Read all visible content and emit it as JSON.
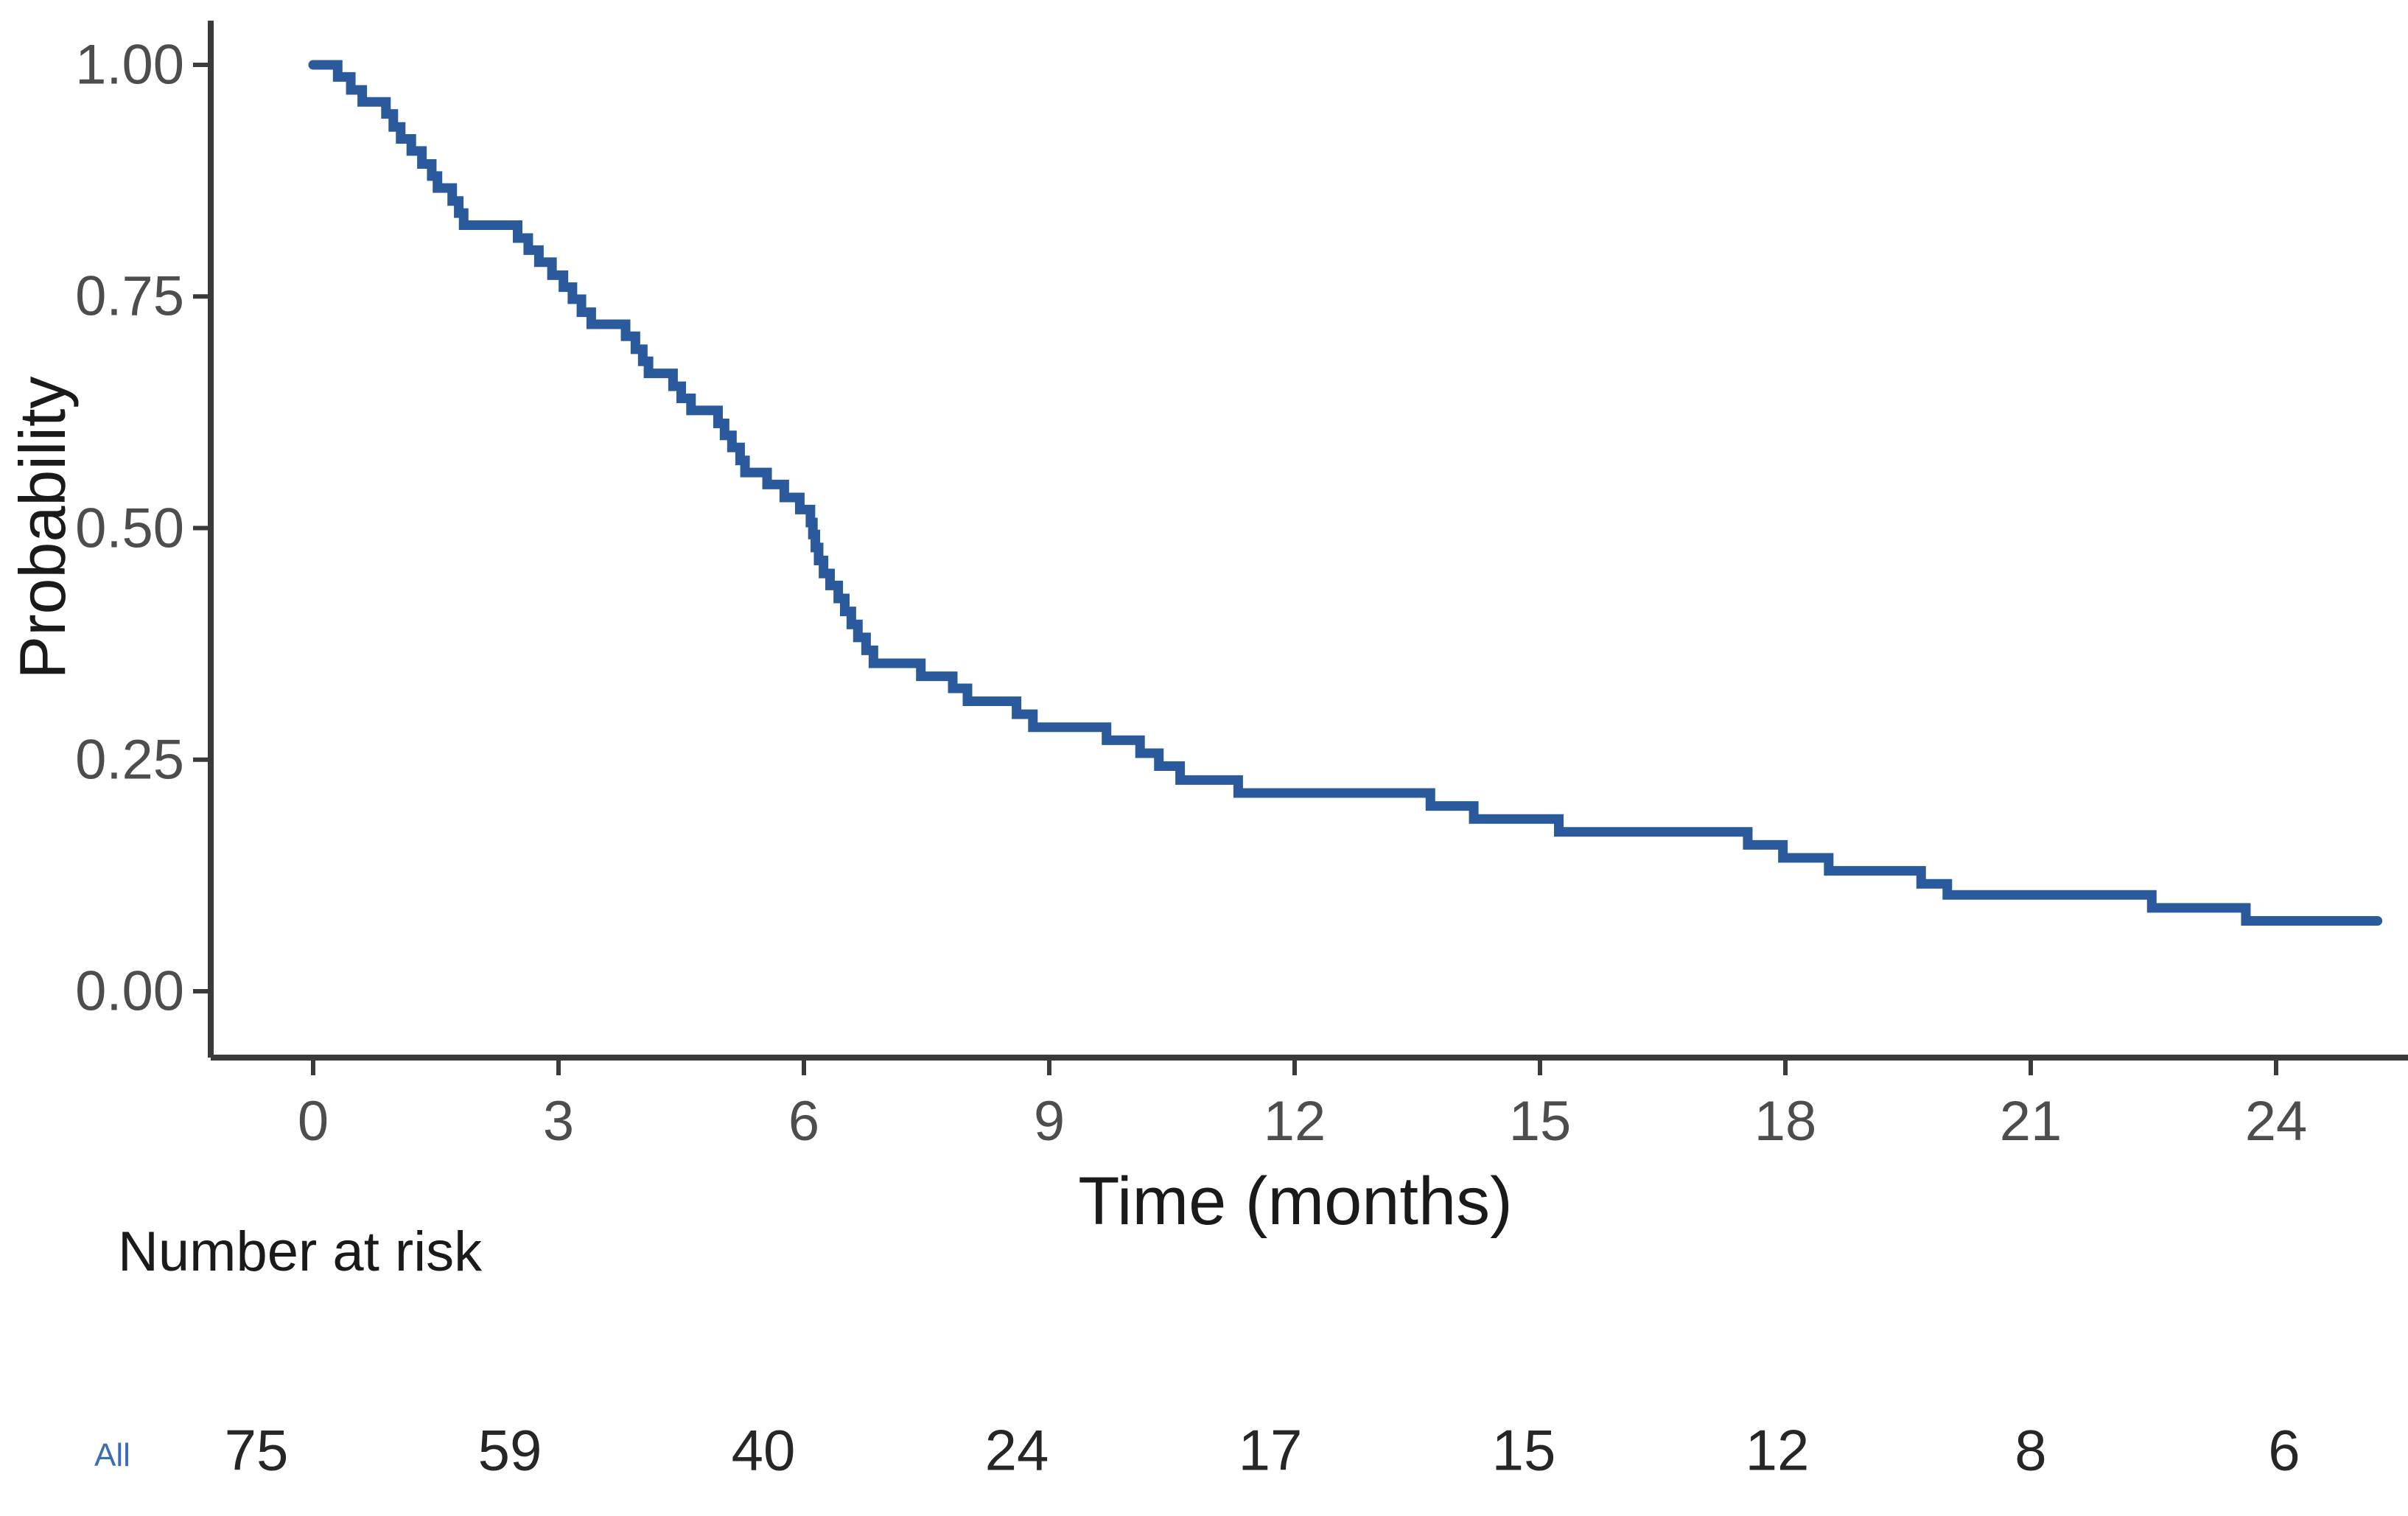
{
  "chart": {
    "y_title": "Probability",
    "x_title": "Time (months)"
  },
  "y_axis": {
    "tick_labels": [
      "1.00",
      "0.75",
      "0.50",
      "0.25",
      "0.00"
    ]
  },
  "x_axis": {
    "tick_labels": [
      "0",
      "3",
      "6",
      "9",
      "12",
      "15",
      "18",
      "21",
      "24"
    ]
  },
  "risk_table": {
    "title": "Number at risk",
    "groups": [
      {
        "label": "All",
        "label_color": "#3b6cb5",
        "counts": [
          "75",
          "59",
          "40",
          "24",
          "17",
          "15",
          "12",
          "8",
          "6"
        ]
      }
    ]
  },
  "chart_data": {
    "type": "line",
    "subtype": "kaplan-meier-step-function",
    "title": "",
    "xlabel": "Time (months)",
    "ylabel": "Probability",
    "xlim": [
      -1.3,
      25.6
    ],
    "ylim": [
      -0.05,
      1.05
    ],
    "x_ticks": [
      0,
      3,
      6,
      9,
      12,
      15,
      18,
      21,
      24
    ],
    "y_ticks": [
      1.0,
      0.75,
      0.5,
      0.25,
      0.0
    ],
    "grid": false,
    "legend": "none",
    "number_at_risk": {
      "label": "All",
      "times": [
        0,
        3,
        6,
        9,
        12,
        15,
        18,
        21,
        24
      ],
      "counts": [
        75,
        59,
        40,
        24,
        17,
        15,
        12,
        8,
        6
      ]
    },
    "series": [
      {
        "name": "All",
        "color": "#2a5a9c",
        "end_time": 25.24,
        "steps": [
          [
            0.0,
            1.0
          ],
          [
            0.3,
            0.987
          ],
          [
            0.46,
            0.973
          ],
          [
            0.6,
            0.96
          ],
          [
            0.89,
            0.947
          ],
          [
            0.98,
            0.933
          ],
          [
            1.07,
            0.92
          ],
          [
            1.2,
            0.907
          ],
          [
            1.33,
            0.893
          ],
          [
            1.45,
            0.88
          ],
          [
            1.52,
            0.867
          ],
          [
            1.7,
            0.853
          ],
          [
            1.78,
            0.84
          ],
          [
            1.84,
            0.827
          ],
          [
            2.5,
            0.813
          ],
          [
            2.63,
            0.8
          ],
          [
            2.76,
            0.787
          ],
          [
            2.92,
            0.773
          ],
          [
            3.06,
            0.76
          ],
          [
            3.17,
            0.747
          ],
          [
            3.28,
            0.733
          ],
          [
            3.4,
            0.72
          ],
          [
            3.82,
            0.707
          ],
          [
            3.94,
            0.693
          ],
          [
            4.03,
            0.68
          ],
          [
            4.1,
            0.667
          ],
          [
            4.4,
            0.653
          ],
          [
            4.5,
            0.64
          ],
          [
            4.62,
            0.627
          ],
          [
            4.95,
            0.613
          ],
          [
            5.03,
            0.6
          ],
          [
            5.12,
            0.587
          ],
          [
            5.22,
            0.573
          ],
          [
            5.28,
            0.56
          ],
          [
            5.55,
            0.547
          ],
          [
            5.76,
            0.533
          ],
          [
            5.95,
            0.52
          ],
          [
            6.08,
            0.506
          ],
          [
            6.11,
            0.493
          ],
          [
            6.14,
            0.479
          ],
          [
            6.18,
            0.465
          ],
          [
            6.24,
            0.451
          ],
          [
            6.32,
            0.438
          ],
          [
            6.42,
            0.424
          ],
          [
            6.5,
            0.41
          ],
          [
            6.58,
            0.396
          ],
          [
            6.66,
            0.382
          ],
          [
            6.76,
            0.368
          ],
          [
            6.85,
            0.354
          ],
          [
            7.43,
            0.34
          ],
          [
            7.82,
            0.327
          ],
          [
            8.0,
            0.313
          ],
          [
            8.6,
            0.299
          ],
          [
            8.8,
            0.285
          ],
          [
            9.7,
            0.271
          ],
          [
            10.11,
            0.257
          ],
          [
            10.34,
            0.243
          ],
          [
            10.6,
            0.228
          ],
          [
            11.31,
            0.214
          ],
          [
            13.66,
            0.2
          ],
          [
            14.19,
            0.186
          ],
          [
            15.23,
            0.172
          ],
          [
            17.54,
            0.158
          ],
          [
            17.97,
            0.144
          ],
          [
            18.53,
            0.13
          ],
          [
            19.66,
            0.116
          ],
          [
            19.98,
            0.104
          ],
          [
            22.48,
            0.09
          ],
          [
            23.63,
            0.076
          ]
        ]
      }
    ]
  }
}
